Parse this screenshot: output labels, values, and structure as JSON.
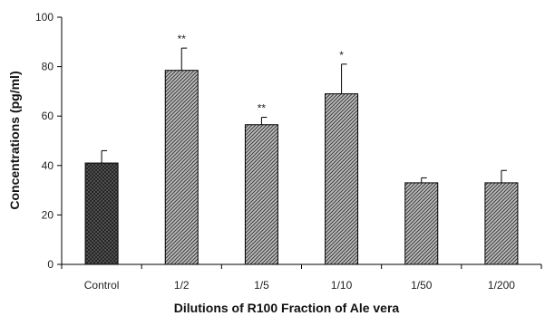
{
  "chart_data": {
    "type": "bar",
    "title": "",
    "xlabel": "Dilutions of R100 Fraction of Ale vera",
    "ylabel": "Concentrations (pg/ml)",
    "ylim": [
      0,
      100
    ],
    "yticks": [
      0,
      20,
      40,
      60,
      80,
      100
    ],
    "grid": false,
    "legend": "none",
    "categories": [
      "Control",
      "1/2",
      "1/5",
      "1/10",
      "1/50",
      "1/200"
    ],
    "values": [
      41,
      78.5,
      56.5,
      69,
      33,
      33
    ],
    "errors": [
      5,
      9,
      3,
      12,
      2,
      5
    ],
    "significance": [
      "",
      "**",
      "**",
      "*",
      "",
      ""
    ],
    "bar_styles": [
      "dark-crosshatch",
      "gray-hatch",
      "gray-hatch",
      "gray-hatch",
      "gray-hatch",
      "gray-hatch"
    ]
  }
}
